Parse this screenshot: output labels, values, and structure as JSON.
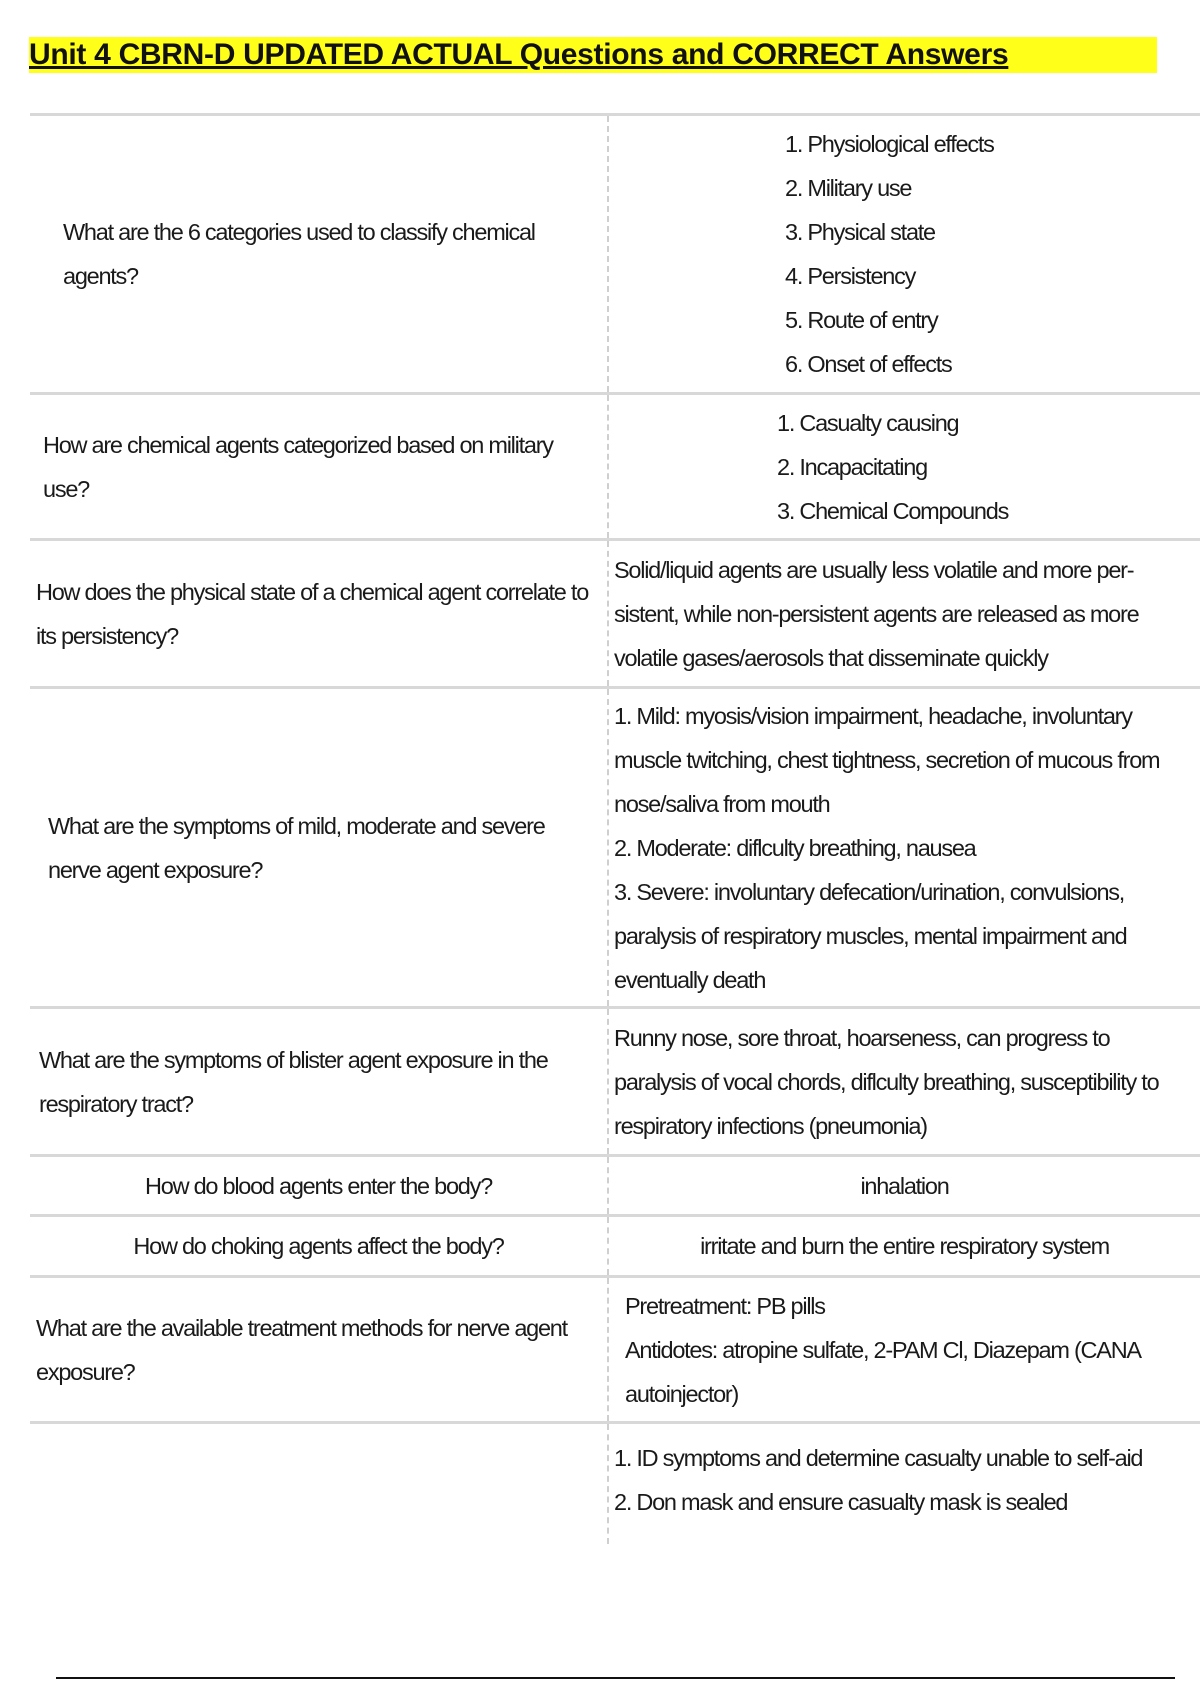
{
  "title": "Unit 4 CBRN-D UPDATED ACTUAL Questions and CORRECT Answers",
  "highlight_color": "#ffff1a",
  "rows": [
    {
      "question": "What are the 6 categories used to classify chemical agents?",
      "answer": [
        "1. Physiological effects",
        "2. Military use",
        "3. Physical state",
        "4. Persistency",
        "5. Route of entry",
        "6. Onset of effects"
      ]
    },
    {
      "question": "How are chemical agents categorized based on military use?",
      "answer": [
        "1. Casualty causing",
        "2. Incapacitating",
        "3. Chemical Compounds"
      ]
    },
    {
      "question": "How does the physical state of a chemical agent correlate to its persistency?",
      "answer": [
        "Solid/liquid agents are usually less volatile and more per-sistent, while non-persistent agents are released as more volatile gases/aerosols that disseminate quickly"
      ]
    },
    {
      "question": "What are the symptoms of mild, moderate and severe nerve agent exposure?",
      "answer": [
        "1. Mild: myosis/vision impairment, headache, involuntary muscle twitching, chest tightness, secretion of mucous from nose/saliva from mouth",
        "2. Moderate: diflculty breathing, nausea",
        "3. Severe: involuntary defecation/urination, convulsions, paralysis of respiratory muscles, mental impairment and eventually death"
      ]
    },
    {
      "question": "What are the symptoms of blister agent exposure in the respiratory tract?",
      "answer": [
        "Runny nose, sore throat, hoarseness, can progress to paralysis of vocal chords, diflculty breathing, susceptibility to respiratory infections (pneumonia)"
      ]
    },
    {
      "question": "How do blood agents enter the body?",
      "answer": [
        "inhalation"
      ]
    },
    {
      "question": "How do choking agents affect the body?",
      "answer": [
        "irritate and burn the entire respiratory system"
      ]
    },
    {
      "question": "What are the available treatment methods for nerve agent exposure?",
      "answer": [
        "Pretreatment: PB pills",
        "Antidotes: atropine sulfate, 2-PAM Cl, Diazepam (CANA autoinjector)"
      ]
    },
    {
      "question": "",
      "answer": [
        "1. ID symptoms and determine casualty unable to self-aid",
        "2. Don mask and ensure casualty mask is sealed"
      ]
    }
  ]
}
